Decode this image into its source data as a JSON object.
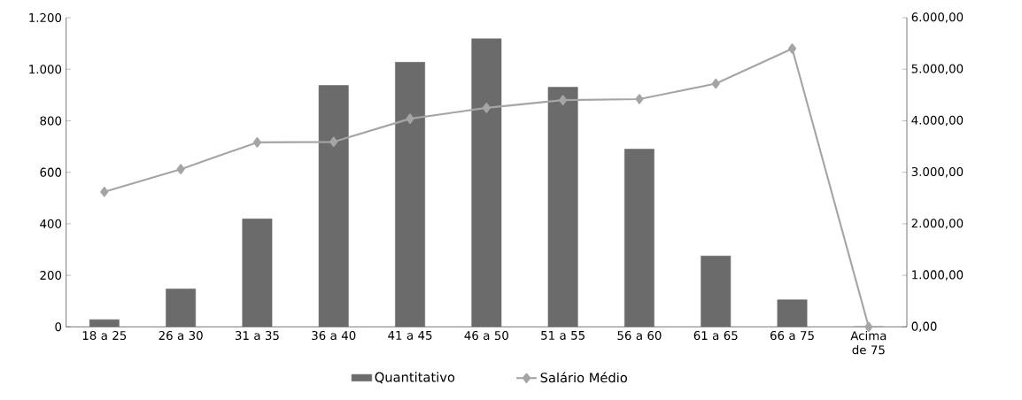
{
  "chart_data": {
    "type": "bar",
    "categories": [
      "18 a 25",
      "26 a 30",
      "31 a 35",
      "36 a 40",
      "41 a 45",
      "46 a 50",
      "51 a 55",
      "56 a 60",
      "61 a 65",
      "66 a 75",
      "Acima de 75"
    ],
    "series": [
      {
        "name": "Quantitativo",
        "color": "#6b6b6b",
        "values": [
          28,
          147,
          419,
          937,
          1027,
          1118,
          930,
          690,
          275,
          105,
          0
        ]
      },
      {
        "name": "Salário Médio",
        "type": "line",
        "axis": "y2",
        "color": "#a5a5a5",
        "values": [
          2620,
          3060,
          3580,
          3590,
          4040,
          4250,
          4400,
          4420,
          4720,
          5400,
          0
        ]
      }
    ],
    "ylim": [
      0,
      1200
    ],
    "yticks": [
      {
        "value": 0,
        "label": "0"
      },
      {
        "value": 200,
        "label": "200"
      },
      {
        "value": 400,
        "label": "400"
      },
      {
        "value": 600,
        "label": "600"
      },
      {
        "value": 800,
        "label": "800"
      },
      {
        "value": 1000,
        "label": "1.000"
      },
      {
        "value": 1200,
        "label": "1.200"
      }
    ],
    "y2lim": [
      0,
      6000
    ],
    "y2ticks": [
      {
        "value": 0,
        "label": "0,00"
      },
      {
        "value": 1000,
        "label": "1.000,00"
      },
      {
        "value": 2000,
        "label": "2.000,00"
      },
      {
        "value": 3000,
        "label": "3.000,00"
      },
      {
        "value": 4000,
        "label": "4.000,00"
      },
      {
        "value": 5000,
        "label": "5.000,00"
      },
      {
        "value": 6000,
        "label": "6.000,00"
      }
    ],
    "legend": "bottom",
    "marker": "diamond"
  }
}
